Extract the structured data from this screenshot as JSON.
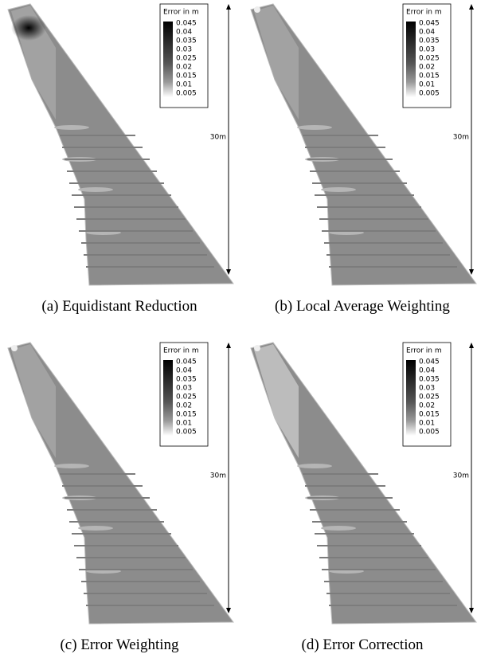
{
  "panels": [
    {
      "caption": "(a) Equidistant Reduction",
      "legend": {
        "title": "Error in m",
        "ticks": [
          "0.045",
          "0.04",
          "0.035",
          "0.03",
          "0.025",
          "0.02",
          "0.015",
          "0.01",
          "0.005"
        ]
      },
      "scale": "30m"
    },
    {
      "caption": "(b) Local Average Weighting",
      "legend": {
        "title": "Error in m",
        "ticks": [
          "0.045",
          "0.04",
          "0.035",
          "0.03",
          "0.025",
          "0.02",
          "0.015",
          "0.01",
          "0.005"
        ]
      },
      "scale": "30m"
    },
    {
      "caption": "(c) Error Weighting",
      "legend": {
        "title": "Error in m",
        "ticks": [
          "0.045",
          "0.04",
          "0.035",
          "0.03",
          "0.025",
          "0.02",
          "0.015",
          "0.01",
          "0.005"
        ]
      },
      "scale": "30m"
    },
    {
      "caption": "(d) Error Correction",
      "legend": {
        "title": "Error in m",
        "ticks": [
          "0.045",
          "0.04",
          "0.035",
          "0.03",
          "0.025",
          "0.02",
          "0.015",
          "0.01",
          "0.005"
        ]
      },
      "scale": "30m"
    }
  ]
}
